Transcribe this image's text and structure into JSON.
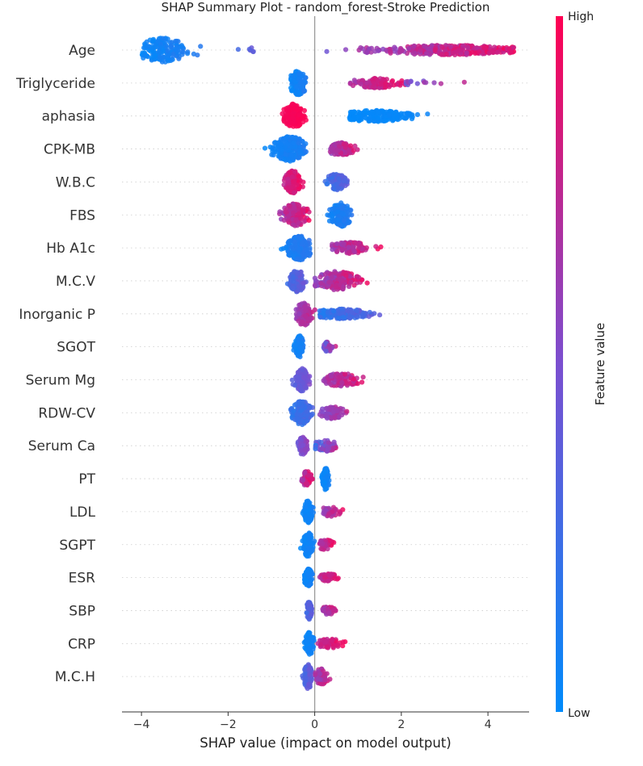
{
  "chart_data": {
    "type": "scatter",
    "subtype": "shap_beeswarm",
    "title": "SHAP Summary Plot - random_forest-Stroke Prediction",
    "xlabel": "SHAP value (impact on model output)",
    "ylabel": "",
    "xlim": [
      -4.45,
      4.95
    ],
    "xticks": [
      -4,
      -2,
      0,
      2,
      4
    ],
    "xtick_labels": [
      "−4",
      "−2",
      "0",
      "2",
      "4"
    ],
    "grid": false,
    "colorbar": {
      "label": "Feature value",
      "high_label": "High",
      "low_label": "Low",
      "low_color": "#008bfb",
      "mid_color": "#7b4fd0",
      "high_color": "#ff0052"
    },
    "features": [
      {
        "name": "Age",
        "clusters": [
          {
            "lo": -4.0,
            "hi": -2.3,
            "center": -3.5,
            "spread": 0.3,
            "n": 160,
            "v0": 0.0,
            "v1": 0.2,
            "h": 15
          },
          {
            "lo": -1.9,
            "hi": -1.4,
            "center": -1.6,
            "spread": 0.2,
            "n": 6,
            "v0": 0.2,
            "v1": 0.45,
            "h": 4
          },
          {
            "lo": 0.25,
            "hi": 4.6,
            "center": 3.1,
            "spread": 0.9,
            "n": 300,
            "v0": 0.45,
            "v1": 1.0,
            "h": 6
          }
        ]
      },
      {
        "name": "Triglyceride",
        "clusters": [
          {
            "lo": -0.55,
            "hi": -0.2,
            "center": -0.38,
            "spread": 0.1,
            "n": 110,
            "v0": 0.0,
            "v1": 0.15,
            "h": 15
          },
          {
            "lo": 0.8,
            "hi": 2.1,
            "center": 1.45,
            "spread": 0.3,
            "n": 120,
            "v0": 0.6,
            "v1": 1.0,
            "h": 6
          },
          {
            "lo": 2.1,
            "hi": 3.6,
            "center": 2.6,
            "spread": 0.4,
            "n": 14,
            "v0": 0.4,
            "v1": 0.9,
            "h": 3
          }
        ]
      },
      {
        "name": "aphasia",
        "clusters": [
          {
            "lo": -0.8,
            "hi": -0.15,
            "center": -0.48,
            "spread": 0.12,
            "n": 140,
            "v0": 0.95,
            "v1": 1.0,
            "h": 15
          },
          {
            "lo": 0.8,
            "hi": 2.65,
            "center": 1.4,
            "spread": 0.45,
            "n": 180,
            "v0": 0.0,
            "v1": 0.06,
            "h": 7
          }
        ]
      },
      {
        "name": "CPK-MB",
        "clusters": [
          {
            "lo": -1.35,
            "hi": -0.2,
            "center": -0.55,
            "spread": 0.18,
            "n": 230,
            "v0": 0.0,
            "v1": 0.15,
            "h": 16
          },
          {
            "lo": 0.35,
            "hi": 1.15,
            "center": 0.6,
            "spread": 0.15,
            "n": 90,
            "v0": 0.55,
            "v1": 1.0,
            "h": 8
          }
        ]
      },
      {
        "name": "W.B.C",
        "clusters": [
          {
            "lo": -0.8,
            "hi": -0.25,
            "center": -0.5,
            "spread": 0.09,
            "n": 110,
            "v0": 0.7,
            "v1": 1.0,
            "h": 14
          },
          {
            "lo": 0.2,
            "hi": 0.8,
            "center": 0.5,
            "spread": 0.12,
            "n": 100,
            "v0": 0.1,
            "v1": 0.5,
            "h": 10
          }
        ]
      },
      {
        "name": "FBS",
        "clusters": [
          {
            "lo": -0.95,
            "hi": -0.1,
            "center": -0.45,
            "spread": 0.15,
            "n": 120,
            "v0": 0.5,
            "v1": 1.0,
            "h": 14
          },
          {
            "lo": 0.05,
            "hi": 0.95,
            "center": 0.6,
            "spread": 0.12,
            "n": 140,
            "v0": 0.0,
            "v1": 0.2,
            "h": 15
          }
        ]
      },
      {
        "name": "Hb A1c",
        "clusters": [
          {
            "lo": -1.0,
            "hi": -0.1,
            "center": -0.35,
            "spread": 0.14,
            "n": 200,
            "v0": 0.0,
            "v1": 0.2,
            "h": 15
          },
          {
            "lo": 0.4,
            "hi": 1.55,
            "center": 0.8,
            "spread": 0.25,
            "n": 100,
            "v0": 0.55,
            "v1": 1.0,
            "h": 7
          }
        ]
      },
      {
        "name": "M.C.V",
        "clusters": [
          {
            "lo": -0.65,
            "hi": -0.15,
            "center": -0.4,
            "spread": 0.08,
            "n": 120,
            "v0": 0.2,
            "v1": 0.5,
            "h": 14
          },
          {
            "lo": 0.0,
            "hi": 1.3,
            "center": 0.5,
            "spread": 0.25,
            "n": 170,
            "v0": 0.5,
            "v1": 1.0,
            "h": 12
          }
        ]
      },
      {
        "name": "Inorganic P",
        "clusters": [
          {
            "lo": -0.45,
            "hi": 0.15,
            "center": -0.25,
            "spread": 0.08,
            "n": 150,
            "v0": 0.55,
            "v1": 0.9,
            "h": 15
          },
          {
            "lo": 0.1,
            "hi": 1.8,
            "center": 0.6,
            "spread": 0.35,
            "n": 170,
            "v0": 0.1,
            "v1": 0.5,
            "h": 6
          }
        ]
      },
      {
        "name": "SGOT",
        "clusters": [
          {
            "lo": -0.5,
            "hi": -0.25,
            "center": -0.35,
            "spread": 0.05,
            "n": 100,
            "v0": 0.0,
            "v1": 0.15,
            "h": 14
          },
          {
            "lo": 0.2,
            "hi": 0.6,
            "center": 0.3,
            "spread": 0.07,
            "n": 40,
            "v0": 0.3,
            "v1": 1.0,
            "h": 6
          }
        ]
      },
      {
        "name": "Serum Mg",
        "clusters": [
          {
            "lo": -0.55,
            "hi": -0.1,
            "center": -0.3,
            "spread": 0.08,
            "n": 130,
            "v0": 0.3,
            "v1": 0.55,
            "h": 14
          },
          {
            "lo": 0.2,
            "hi": 1.3,
            "center": 0.6,
            "spread": 0.22,
            "n": 100,
            "v0": 0.55,
            "v1": 1.0,
            "h": 8
          }
        ]
      },
      {
        "name": "RDW-CV",
        "clusters": [
          {
            "lo": -0.65,
            "hi": -0.05,
            "center": -0.3,
            "spread": 0.1,
            "n": 160,
            "v0": 0.1,
            "v1": 0.35,
            "h": 15
          },
          {
            "lo": 0.1,
            "hi": 0.75,
            "center": 0.4,
            "spread": 0.13,
            "n": 80,
            "v0": 0.45,
            "v1": 0.8,
            "h": 8
          }
        ]
      },
      {
        "name": "Serum Ca",
        "clusters": [
          {
            "lo": -0.4,
            "hi": -0.15,
            "center": -0.28,
            "spread": 0.05,
            "n": 90,
            "v0": 0.4,
            "v1": 0.65,
            "h": 11
          },
          {
            "lo": 0.0,
            "hi": 0.6,
            "center": 0.25,
            "spread": 0.13,
            "n": 60,
            "v0": 0.1,
            "v1": 1.0,
            "h": 7
          }
        ]
      },
      {
        "name": "PT",
        "clusters": [
          {
            "lo": -0.3,
            "hi": -0.05,
            "center": -0.18,
            "spread": 0.05,
            "n": 55,
            "v0": 0.6,
            "v1": 1.0,
            "h": 10
          },
          {
            "lo": 0.15,
            "hi": 0.35,
            "center": 0.25,
            "spread": 0.04,
            "n": 90,
            "v0": 0.0,
            "v1": 0.1,
            "h": 14
          }
        ]
      },
      {
        "name": "LDL",
        "clusters": [
          {
            "lo": -0.3,
            "hi": 0.0,
            "center": -0.15,
            "spread": 0.05,
            "n": 100,
            "v0": 0.0,
            "v1": 0.12,
            "h": 14
          },
          {
            "lo": 0.15,
            "hi": 0.7,
            "center": 0.35,
            "spread": 0.12,
            "n": 40,
            "v0": 0.5,
            "v1": 1.0,
            "h": 6
          }
        ]
      },
      {
        "name": "SGPT",
        "clusters": [
          {
            "lo": -0.35,
            "hi": 0.0,
            "center": -0.15,
            "spread": 0.06,
            "n": 110,
            "v0": 0.0,
            "v1": 0.12,
            "h": 15
          },
          {
            "lo": 0.1,
            "hi": 0.45,
            "center": 0.25,
            "spread": 0.08,
            "n": 45,
            "v0": 0.6,
            "v1": 1.0,
            "h": 7
          }
        ]
      },
      {
        "name": "ESR",
        "clusters": [
          {
            "lo": -0.25,
            "hi": -0.05,
            "center": -0.15,
            "spread": 0.04,
            "n": 80,
            "v0": 0.0,
            "v1": 0.12,
            "h": 12
          },
          {
            "lo": 0.1,
            "hi": 0.6,
            "center": 0.3,
            "spread": 0.12,
            "n": 45,
            "v0": 0.65,
            "v1": 1.0,
            "h": 5
          }
        ]
      },
      {
        "name": "SBP",
        "clusters": [
          {
            "lo": -0.2,
            "hi": -0.05,
            "center": -0.13,
            "spread": 0.03,
            "n": 70,
            "v0": 0.2,
            "v1": 0.45,
            "h": 11
          },
          {
            "lo": 0.1,
            "hi": 0.5,
            "center": 0.3,
            "spread": 0.09,
            "n": 40,
            "v0": 0.45,
            "v1": 1.0,
            "h": 5
          }
        ]
      },
      {
        "name": "CRP",
        "clusters": [
          {
            "lo": -0.25,
            "hi": 0.0,
            "center": -0.12,
            "spread": 0.05,
            "n": 90,
            "v0": 0.0,
            "v1": 0.12,
            "h": 14
          },
          {
            "lo": 0.05,
            "hi": 0.75,
            "center": 0.35,
            "spread": 0.14,
            "n": 55,
            "v0": 0.7,
            "v1": 1.0,
            "h": 6
          }
        ]
      },
      {
        "name": "M.C.H",
        "clusters": [
          {
            "lo": -0.3,
            "hi": -0.05,
            "center": -0.15,
            "spread": 0.05,
            "n": 100,
            "v0": 0.2,
            "v1": 0.5,
            "h": 15
          },
          {
            "lo": 0.0,
            "hi": 0.45,
            "center": 0.15,
            "spread": 0.08,
            "n": 60,
            "v0": 0.5,
            "v1": 1.0,
            "h": 10
          }
        ]
      }
    ]
  }
}
